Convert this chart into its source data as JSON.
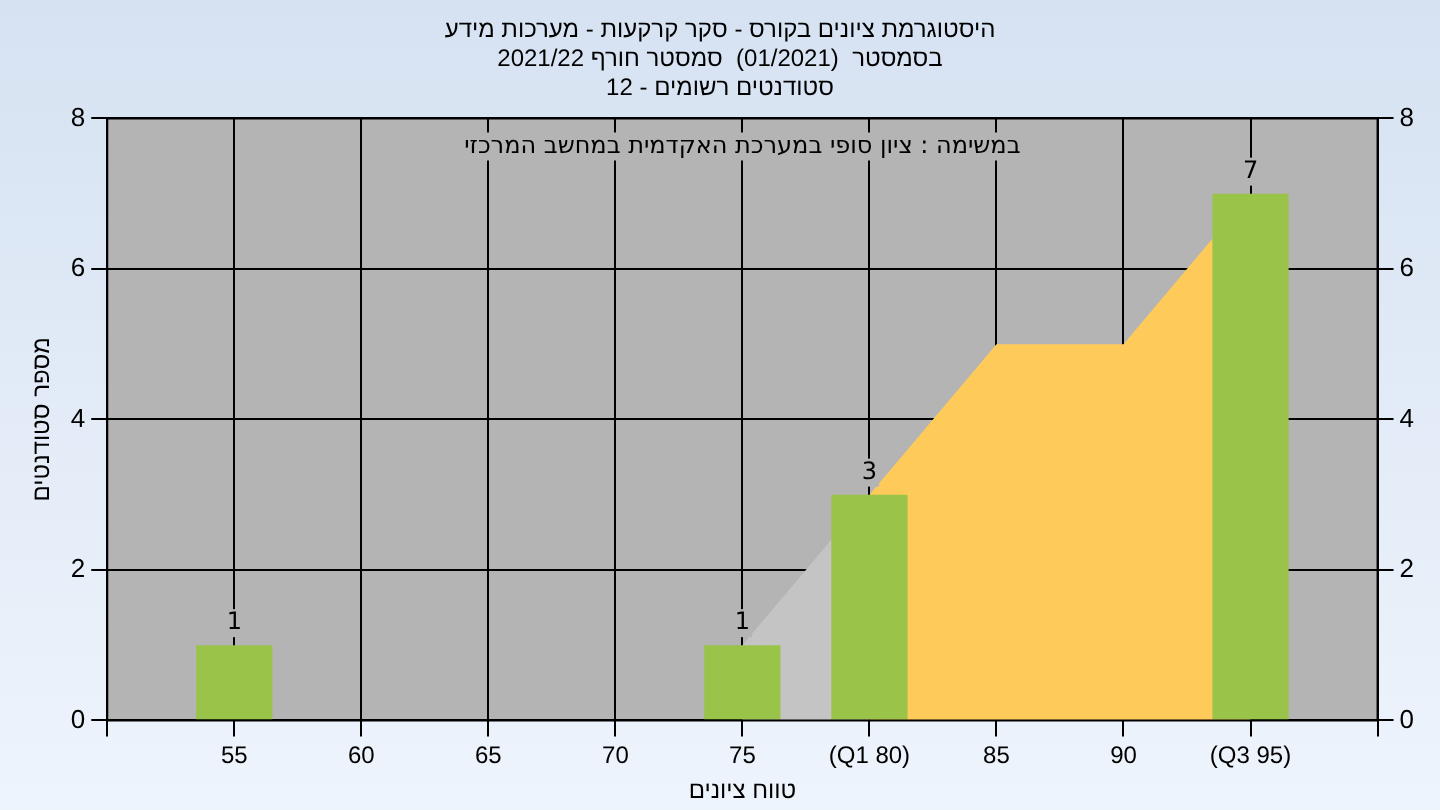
{
  "chart_data": {
    "type": "bar",
    "title": "היסטוגרמת ציונים בקורס - סקר קרקעות - מערכות מידע",
    "subtitle": "בסמסטר  (01/2021)  סמסטר חורף 2021/22\nסטודנטים רשומים - 12",
    "xlabel": "טווח ציונים",
    "ylabel": "מספר סטודנטים",
    "annotations": [
      "במשימה : ציון סופי במערכת האקדמית במחשב המרכזי"
    ],
    "categories": [
      null,
      "55",
      "60",
      "65",
      "70",
      "75",
      "(Q1 80)",
      "85",
      "90",
      "(Q3 95)",
      null
    ],
    "series": [
      {
        "type": "area",
        "color": "#c4c4c4",
        "values": [
          null,
          null,
          null,
          null,
          null,
          1,
          3,
          null,
          null,
          null,
          null
        ]
      },
      {
        "type": "area",
        "color": "#fecb5a",
        "values": [
          null,
          null,
          null,
          null,
          null,
          null,
          3,
          5,
          5,
          7,
          null
        ]
      },
      {
        "color": "#9ac34a",
        "values": [
          null,
          1,
          0,
          0,
          0,
          1,
          3,
          0,
          0,
          7,
          null
        ],
        "value_labels": [
          null,
          "1",
          null,
          null,
          null,
          "1",
          "3",
          null,
          null,
          "7",
          null
        ]
      }
    ],
    "ylim": [
      0,
      8
    ],
    "yticks": [
      0,
      2,
      4,
      6,
      8
    ],
    "y2lim": [
      0,
      8
    ],
    "y2ticks": [
      0,
      2,
      4,
      6,
      8
    ],
    "grid": true,
    "legend": false
  }
}
